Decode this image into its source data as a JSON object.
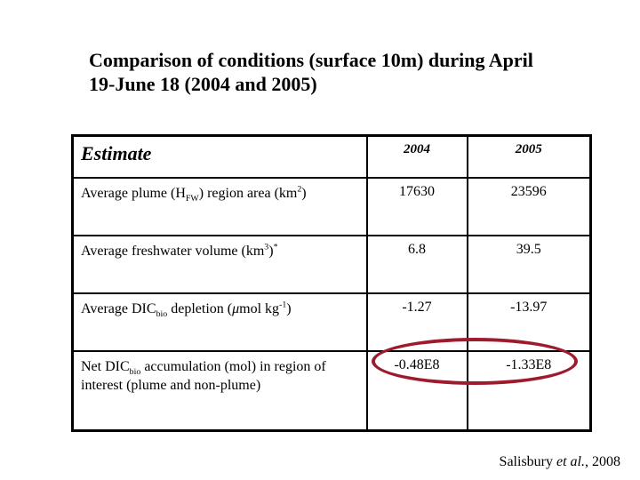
{
  "title": {
    "line1": "Comparison of conditions (surface 10m) during April",
    "line2": "19-June 18 (2004 and 2005)"
  },
  "table": {
    "header": {
      "col1": "Estimate",
      "col2": "2004",
      "col3": "2005"
    },
    "rows": [
      {
        "label_parts": [
          {
            "t": "Average plume (H"
          },
          {
            "sub": "FW"
          },
          {
            "t": ") region area (km"
          },
          {
            "sup": "2"
          },
          {
            "t": ")"
          }
        ],
        "v2004": "17630",
        "v2005": "23596",
        "tall": false
      },
      {
        "label_parts": [
          {
            "t": "Average freshwater volume (km"
          },
          {
            "sup": "3"
          },
          {
            "t": ")"
          },
          {
            "sup": "*"
          }
        ],
        "v2004": "6.8",
        "v2005": "39.5",
        "tall": false
      },
      {
        "label_parts": [
          {
            "t": "Average DIC"
          },
          {
            "sub": "bio"
          },
          {
            "t": " depletion ("
          },
          {
            "i": "μ"
          },
          {
            "t": "mol kg"
          },
          {
            "sup": "-1"
          },
          {
            "t": ")"
          }
        ],
        "v2004": "-1.27",
        "v2005": "-13.97",
        "tall": false
      },
      {
        "label_parts": [
          {
            "t": "Net DIC"
          },
          {
            "sub": "bio"
          },
          {
            "t": " accumulation (mol) in region of interest (plume and non-plume)"
          }
        ],
        "v2004": "-0.48E8",
        "v2005": "-1.33E8",
        "tall": true
      }
    ]
  },
  "annotation": {
    "ellipse_color": "#9e1b2e"
  },
  "citation": {
    "parts": [
      {
        "t": "Salisbury "
      },
      {
        "i": "et al."
      },
      {
        "t": ", 2008"
      }
    ]
  }
}
